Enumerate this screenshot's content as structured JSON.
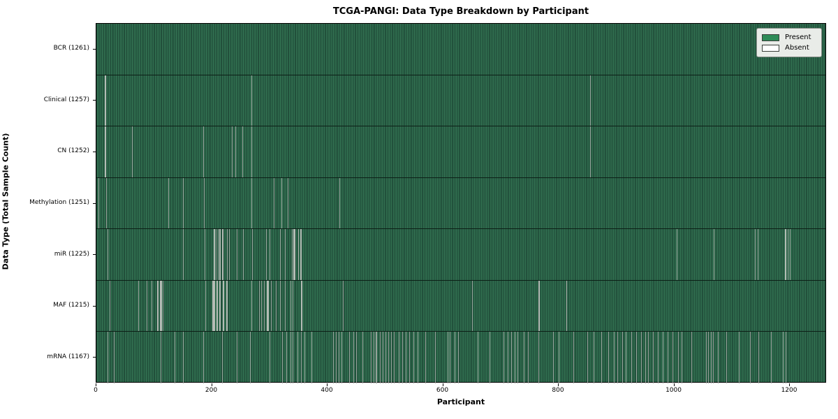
{
  "figure": {
    "title": "TCGA-PANGI: Data Type Breakdown by Participant",
    "xlabel": "Participant",
    "ylabel": "Data Type (Total Sample Count)"
  },
  "legend": {
    "position": "upper-right",
    "items": [
      {
        "label": "Present",
        "color": "#2e8b57"
      },
      {
        "label": "Absent",
        "color": "#ffffff"
      }
    ]
  },
  "colors": {
    "present_fill": "#2e8b57",
    "absent_fill": "#ffffff",
    "stripe_dark": "#1e4836",
    "stripe_light": "#2f6b4d",
    "absent_line_single": "#96a19a",
    "absent_line_cluster": "#b4bcb5",
    "row_divider": "#0c1f16",
    "frame": "#000000",
    "legend_bg": "#e9ece8",
    "background": "#ffffff"
  },
  "chart_data": {
    "type": "heatmap",
    "title": "TCGA-PANGI: Data Type Breakdown by Participant",
    "xlabel": "Participant",
    "ylabel": "Data Type (Total Sample Count)",
    "legend_entries": [
      "Present",
      "Absent"
    ],
    "legend_position": "upper-right",
    "grid": false,
    "x_ticks": [
      0,
      200,
      400,
      600,
      800,
      1000,
      1200
    ],
    "x_range": [
      0,
      1264
    ],
    "total_participants": 1261,
    "cell_states": [
      "present",
      "absent"
    ],
    "rows": [
      {
        "label": "BCR (1261)",
        "data_type": "BCR",
        "present_count": 1261,
        "absent_count": 0,
        "absent_participants": []
      },
      {
        "label": "Clinical (1257)",
        "data_type": "Clinical",
        "present_count": 1257,
        "absent_count": 4,
        "absent_participants": [
          15,
          16,
          268,
          854
        ]
      },
      {
        "label": "CN (1252)",
        "data_type": "CN",
        "present_count": 1252,
        "absent_count": 9,
        "absent_participants": [
          15,
          16,
          62,
          185,
          234,
          241,
          252,
          268,
          854
        ]
      },
      {
        "label": "Methylation (1251)",
        "data_type": "Methylation",
        "present_count": 1251,
        "absent_count": 10,
        "absent_participants": [
          4,
          17,
          125,
          150,
          186,
          268,
          307,
          320,
          331,
          421
        ]
      },
      {
        "label": "miR (1225)",
        "data_type": "miR",
        "present_count": 1225,
        "absent_count": 36,
        "absent_participants": [
          19,
          150,
          187,
          203,
          204,
          206,
          210,
          213,
          214,
          218,
          219,
          226,
          230,
          243,
          254,
          270,
          294,
          300,
          318,
          326,
          338,
          341,
          342,
          343,
          349,
          350,
          353,
          354,
          1004,
          1068,
          1140,
          1144,
          1192,
          1193,
          1196,
          1200
        ]
      },
      {
        "label": "MAF (1215)",
        "data_type": "MAF",
        "present_count": 1215,
        "absent_count": 46,
        "absent_participants": [
          23,
          72,
          87,
          95,
          105,
          106,
          110,
          111,
          112,
          113,
          115,
          188,
          201,
          202,
          203,
          204,
          208,
          209,
          213,
          214,
          219,
          220,
          225,
          226,
          268,
          281,
          285,
          290,
          295,
          296,
          297,
          298,
          302,
          310,
          318,
          326,
          336,
          340,
          354,
          355,
          427,
          650,
          765,
          766,
          813,
          814
        ]
      },
      {
        "label": "mRNA (1167)",
        "data_type": "mRNA",
        "present_count": 1167,
        "absent_count": 94,
        "absent_participants": [
          19,
          30,
          111,
          135,
          150,
          185,
          218,
          243,
          266,
          300,
          321,
          329,
          336,
          340,
          348,
          354,
          360,
          372,
          409,
          415,
          419,
          424,
          437,
          445,
          449,
          460,
          475,
          480,
          483,
          485,
          490,
          495,
          500,
          505,
          510,
          515,
          523,
          529,
          535,
          541,
          548,
          556,
          569,
          586,
          608,
          611,
          620,
          626,
          660,
          680,
          705,
          712,
          718,
          724,
          729,
          740,
          747,
          765,
          790,
          800,
          825,
          850,
          860,
          874,
          886,
          895,
          902,
          910,
          916,
          925,
          934,
          942,
          950,
          955,
          963,
          971,
          980,
          988,
          997,
          1006,
          1013,
          1030,
          1055,
          1059,
          1063,
          1067,
          1075,
          1090,
          1112,
          1131,
          1145,
          1167,
          1188,
          1193
        ]
      }
    ]
  }
}
